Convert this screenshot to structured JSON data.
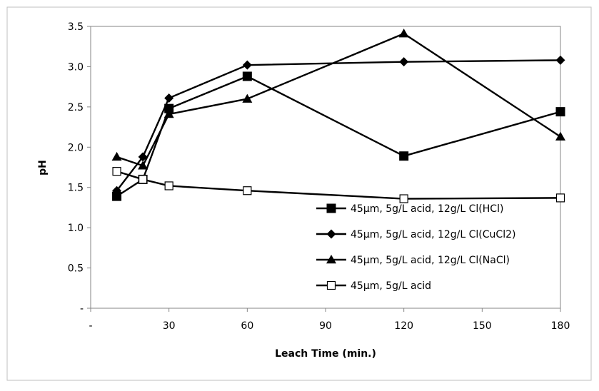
{
  "chart_data": {
    "type": "line",
    "title": "",
    "xlabel": "Leach Time (min.)",
    "ylabel": "pH",
    "xlim": [
      0,
      180
    ],
    "ylim": [
      0,
      3.5
    ],
    "x_ticks": [
      {
        "value": 0,
        "label": "-"
      },
      {
        "value": 30,
        "label": "30"
      },
      {
        "value": 60,
        "label": "60"
      },
      {
        "value": 90,
        "label": "90"
      },
      {
        "value": 120,
        "label": "120"
      },
      {
        "value": 150,
        "label": "150"
      },
      {
        "value": 180,
        "label": "180"
      }
    ],
    "y_ticks": [
      {
        "value": 0,
        "label": "-"
      },
      {
        "value": 0.5,
        "label": "0.5"
      },
      {
        "value": 1.0,
        "label": "1.0"
      },
      {
        "value": 1.5,
        "label": "1.5"
      },
      {
        "value": 2.0,
        "label": "2.0"
      },
      {
        "value": 2.5,
        "label": "2.5"
      },
      {
        "value": 3.0,
        "label": "3.0"
      },
      {
        "value": 3.5,
        "label": "3.5"
      }
    ],
    "grid": false,
    "legend_position": "bottom-right",
    "series": [
      {
        "name": "45μm, 5g/L acid, 12g/L Cl(HCl)",
        "marker": "square-filled",
        "color": "#000000",
        "x": [
          10,
          20,
          30,
          60,
          120,
          180
        ],
        "y": [
          1.39,
          1.6,
          2.48,
          2.88,
          1.89,
          2.44
        ]
      },
      {
        "name": "45μm, 5g/L acid, 12g/L Cl(CuCl2)",
        "marker": "diamond-filled",
        "color": "#000000",
        "x": [
          10,
          20,
          30,
          60,
          120,
          180
        ],
        "y": [
          1.46,
          1.88,
          2.61,
          3.02,
          3.06,
          3.08
        ]
      },
      {
        "name": "45μm, 5g/L acid, 12g/L Cl(NaCl)",
        "marker": "triangle-filled",
        "color": "#000000",
        "x": [
          10,
          20,
          30,
          60,
          120,
          180
        ],
        "y": [
          1.88,
          1.77,
          2.41,
          2.6,
          3.41,
          2.13
        ]
      },
      {
        "name": "45μm, 5g/L acid",
        "marker": "square-open",
        "color": "#000000",
        "x": [
          10,
          20,
          30,
          60,
          120,
          180
        ],
        "y": [
          1.7,
          1.6,
          1.52,
          1.46,
          1.36,
          1.37
        ]
      }
    ]
  }
}
